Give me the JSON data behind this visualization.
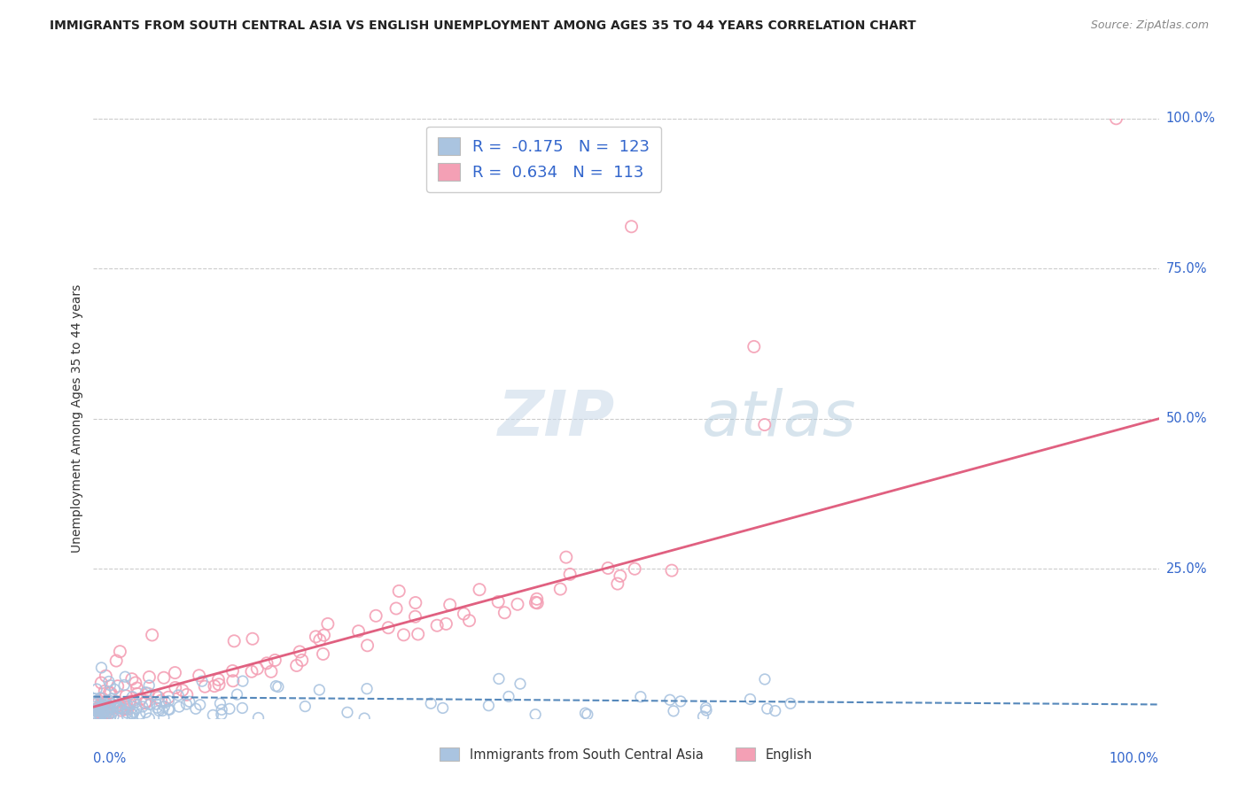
{
  "title": "IMMIGRANTS FROM SOUTH CENTRAL ASIA VS ENGLISH UNEMPLOYMENT AMONG AGES 35 TO 44 YEARS CORRELATION CHART",
  "source": "Source: ZipAtlas.com",
  "ylabel": "Unemployment Among Ages 35 to 44 years",
  "series1_label": "Immigrants from South Central Asia",
  "series2_label": "English",
  "series1_R": "-0.175",
  "series1_N": "123",
  "series2_R": "0.634",
  "series2_N": "113",
  "series1_color": "#aac4e0",
  "series2_color": "#f4a0b5",
  "series1_line_color": "#5588bb",
  "series2_line_color": "#e06080",
  "legend_text_color": "#3366cc",
  "title_color": "#222222",
  "grid_color": "#cccccc",
  "background_color": "#ffffff",
  "right_label_color": "#3366cc",
  "bottom_label_color": "#3366cc"
}
